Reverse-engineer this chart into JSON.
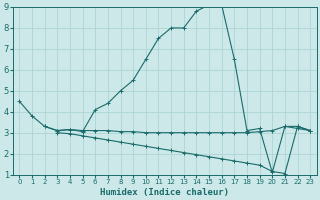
{
  "xlabel": "Humidex (Indice chaleur)",
  "bg_color": "#cce8e8",
  "grid_color": "#aed4d4",
  "line_color": "#1a6b6b",
  "xlim": [
    -0.5,
    23.5
  ],
  "ylim": [
    1,
    9
  ],
  "yticks": [
    1,
    2,
    3,
    4,
    5,
    6,
    7,
    8,
    9
  ],
  "xticks": [
    0,
    1,
    2,
    3,
    4,
    5,
    6,
    7,
    8,
    9,
    10,
    11,
    12,
    13,
    14,
    15,
    16,
    17,
    18,
    19,
    20,
    21,
    22,
    23
  ],
  "line1_x": [
    0,
    1,
    2,
    3,
    4,
    5,
    6,
    7,
    8,
    9,
    10,
    11,
    12,
    13,
    14,
    15,
    16,
    17,
    18,
    19,
    20,
    21,
    22,
    23
  ],
  "line1_y": [
    4.5,
    3.8,
    3.3,
    3.1,
    3.15,
    3.05,
    4.1,
    4.4,
    5.0,
    5.5,
    6.5,
    7.5,
    8.0,
    8.0,
    8.8,
    9.1,
    9.1,
    6.5,
    3.1,
    3.2,
    1.1,
    3.3,
    3.2,
    3.1
  ],
  "line2_x": [
    2,
    3,
    4,
    5,
    6,
    7,
    8,
    9,
    10,
    11,
    12,
    13,
    14,
    15,
    16,
    17,
    18,
    19,
    20,
    21,
    22,
    23
  ],
  "line2_y": [
    3.3,
    3.1,
    3.15,
    3.1,
    3.1,
    3.1,
    3.05,
    3.05,
    3.0,
    3.0,
    3.0,
    3.0,
    3.0,
    3.0,
    3.0,
    3.0,
    3.0,
    3.05,
    3.1,
    3.3,
    3.3,
    3.1
  ],
  "line3_x": [
    3,
    4,
    5,
    6,
    7,
    8,
    9,
    10,
    11,
    12,
    13,
    14,
    15,
    16,
    17,
    18,
    19,
    20,
    21,
    22,
    23
  ],
  "line3_y": [
    3.0,
    2.95,
    2.85,
    2.75,
    2.65,
    2.55,
    2.45,
    2.35,
    2.25,
    2.15,
    2.05,
    1.95,
    1.85,
    1.75,
    1.65,
    1.55,
    1.45,
    1.15,
    1.05,
    3.3,
    3.1
  ]
}
